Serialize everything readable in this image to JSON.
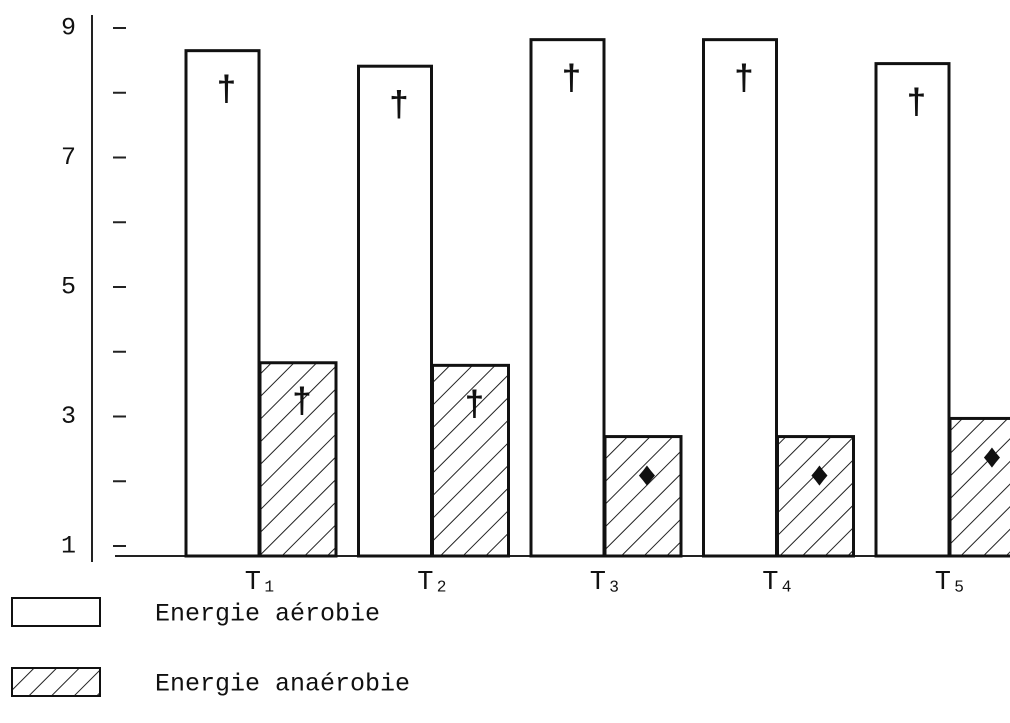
{
  "chart_data": {
    "type": "bar",
    "categories": [
      "T₁",
      "T₂",
      "T₃",
      "T₄",
      "T₅"
    ],
    "series": [
      {
        "name": "Energie aérobie",
        "color": "#ffffff",
        "values": [
          8.65,
          8.41,
          8.82,
          8.82,
          8.45
        ],
        "markers": [
          "†",
          "†",
          "†",
          "†",
          "†"
        ]
      },
      {
        "name": "Energie anaérobie",
        "color": "hatch",
        "values": [
          3.83,
          3.79,
          2.69,
          2.69,
          2.97
        ],
        "markers": [
          "†",
          "†",
          "♦",
          "♦",
          "♦"
        ]
      }
    ],
    "ylim": [
      1,
      9
    ],
    "yticks": [
      1,
      3,
      5,
      7,
      9
    ],
    "minor_yticks": [
      2,
      4,
      6,
      8
    ]
  }
}
